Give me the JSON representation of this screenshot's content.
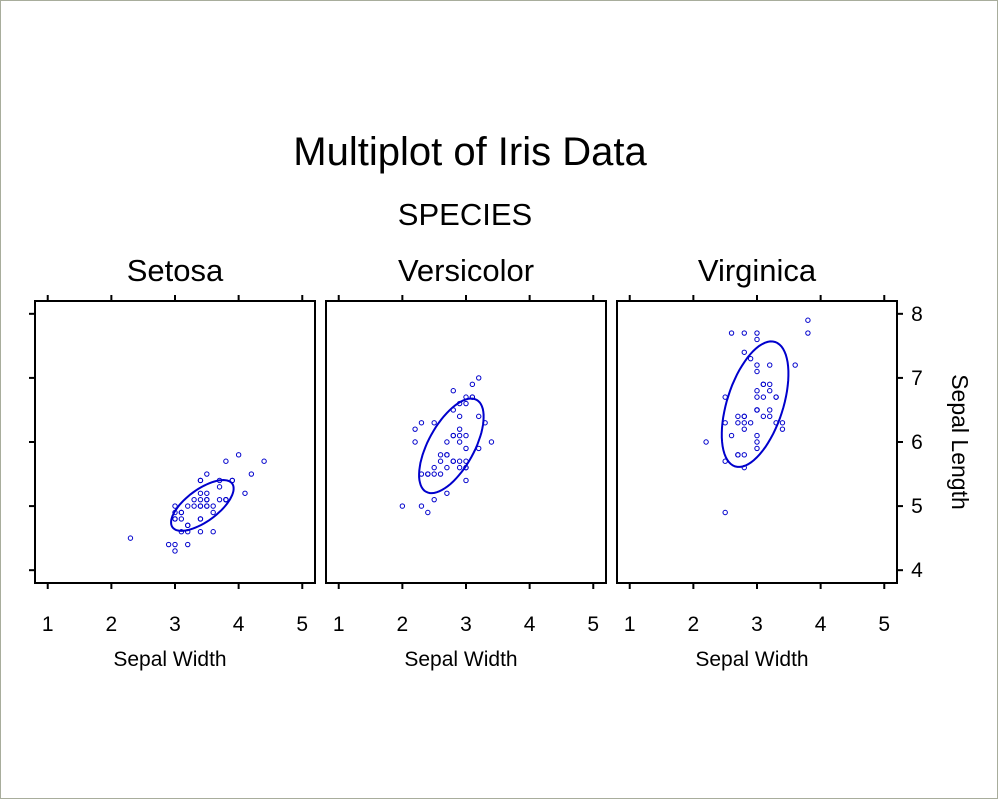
{
  "chart_data": {
    "type": "scatter",
    "title": "Multiplot of Iris Data",
    "subtitle": "SPECIES",
    "xlabel": "Sepal Width",
    "ylabel": "Sepal Length",
    "xlim": [
      0.8,
      5.2
    ],
    "ylim": [
      3.8,
      8.2
    ],
    "x_ticks": [
      1,
      2,
      3,
      4,
      5
    ],
    "y_ticks": [
      4,
      5,
      6,
      7,
      8
    ],
    "y_axis_side": "right",
    "marker_color": "#0000cc",
    "ellipse_color": "#0000cc",
    "panels": [
      {
        "name": "Setosa",
        "points": [
          [
            3.5,
            5.1
          ],
          [
            3.0,
            4.9
          ],
          [
            3.2,
            4.7
          ],
          [
            3.1,
            4.6
          ],
          [
            3.6,
            5.0
          ],
          [
            3.9,
            5.4
          ],
          [
            3.4,
            4.6
          ],
          [
            3.4,
            5.0
          ],
          [
            2.9,
            4.4
          ],
          [
            3.1,
            4.9
          ],
          [
            3.7,
            5.4
          ],
          [
            3.4,
            4.8
          ],
          [
            3.0,
            4.8
          ],
          [
            3.0,
            4.3
          ],
          [
            4.0,
            5.8
          ],
          [
            4.4,
            5.7
          ],
          [
            3.9,
            5.4
          ],
          [
            3.5,
            5.1
          ],
          [
            3.8,
            5.7
          ],
          [
            3.8,
            5.1
          ],
          [
            3.4,
            5.4
          ],
          [
            3.7,
            5.1
          ],
          [
            3.6,
            4.6
          ],
          [
            3.3,
            5.1
          ],
          [
            3.4,
            4.8
          ],
          [
            3.0,
            5.0
          ],
          [
            3.4,
            5.0
          ],
          [
            3.5,
            5.2
          ],
          [
            3.4,
            5.2
          ],
          [
            3.2,
            4.7
          ],
          [
            3.1,
            4.8
          ],
          [
            3.4,
            5.4
          ],
          [
            4.1,
            5.2
          ],
          [
            4.2,
            5.5
          ],
          [
            3.1,
            4.9
          ],
          [
            3.2,
            5.0
          ],
          [
            3.5,
            5.5
          ],
          [
            3.6,
            4.9
          ],
          [
            3.0,
            4.4
          ],
          [
            3.4,
            5.1
          ],
          [
            3.5,
            5.0
          ],
          [
            2.3,
            4.5
          ],
          [
            3.2,
            4.4
          ],
          [
            3.5,
            5.0
          ],
          [
            3.8,
            5.1
          ],
          [
            3.0,
            4.8
          ],
          [
            3.8,
            5.1
          ],
          [
            3.2,
            4.6
          ],
          [
            3.7,
            5.3
          ],
          [
            3.3,
            5.0
          ]
        ],
        "ellipse": {
          "center": [
            3.43,
            5.01
          ],
          "angle_deg": 36,
          "semi_major": 0.58,
          "semi_minor": 0.25
        }
      },
      {
        "name": "Versicolor",
        "points": [
          [
            3.2,
            7.0
          ],
          [
            3.2,
            6.4
          ],
          [
            3.1,
            6.9
          ],
          [
            2.3,
            5.5
          ],
          [
            2.8,
            6.5
          ],
          [
            2.8,
            5.7
          ],
          [
            3.3,
            6.3
          ],
          [
            2.4,
            4.9
          ],
          [
            2.9,
            6.6
          ],
          [
            2.7,
            5.2
          ],
          [
            2.0,
            5.0
          ],
          [
            3.0,
            5.9
          ],
          [
            2.2,
            6.0
          ],
          [
            2.9,
            6.1
          ],
          [
            2.9,
            5.6
          ],
          [
            3.1,
            6.7
          ],
          [
            3.0,
            5.6
          ],
          [
            2.7,
            5.8
          ],
          [
            2.2,
            6.2
          ],
          [
            2.5,
            5.6
          ],
          [
            3.2,
            5.9
          ],
          [
            2.8,
            6.1
          ],
          [
            2.5,
            6.3
          ],
          [
            2.8,
            6.1
          ],
          [
            2.9,
            6.4
          ],
          [
            3.0,
            6.6
          ],
          [
            2.8,
            6.8
          ],
          [
            3.0,
            6.7
          ],
          [
            2.9,
            6.0
          ],
          [
            2.6,
            5.7
          ],
          [
            2.4,
            5.5
          ],
          [
            2.4,
            5.5
          ],
          [
            2.7,
            5.8
          ],
          [
            2.7,
            6.0
          ],
          [
            3.0,
            5.4
          ],
          [
            3.4,
            6.0
          ],
          [
            3.1,
            6.7
          ],
          [
            2.3,
            6.3
          ],
          [
            3.0,
            5.6
          ],
          [
            2.5,
            5.5
          ],
          [
            2.6,
            5.5
          ],
          [
            3.0,
            6.1
          ],
          [
            2.6,
            5.8
          ],
          [
            2.3,
            5.0
          ],
          [
            2.7,
            5.6
          ],
          [
            3.0,
            5.7
          ],
          [
            2.9,
            5.7
          ],
          [
            2.9,
            6.2
          ],
          [
            2.5,
            5.1
          ],
          [
            2.8,
            5.7
          ]
        ],
        "ellipse": {
          "center": [
            2.77,
            5.94
          ],
          "angle_deg": 61,
          "semi_major": 0.82,
          "semi_minor": 0.36
        }
      },
      {
        "name": "Virginica",
        "points": [
          [
            3.3,
            6.3
          ],
          [
            2.7,
            5.8
          ],
          [
            3.0,
            7.1
          ],
          [
            2.9,
            6.3
          ],
          [
            3.0,
            6.5
          ],
          [
            3.0,
            7.6
          ],
          [
            2.5,
            4.9
          ],
          [
            2.9,
            7.3
          ],
          [
            2.5,
            6.7
          ],
          [
            3.6,
            7.2
          ],
          [
            3.2,
            6.5
          ],
          [
            2.7,
            6.4
          ],
          [
            3.0,
            6.8
          ],
          [
            2.5,
            5.7
          ],
          [
            2.8,
            5.8
          ],
          [
            3.2,
            6.4
          ],
          [
            3.0,
            6.5
          ],
          [
            3.8,
            7.7
          ],
          [
            2.6,
            7.7
          ],
          [
            2.2,
            6.0
          ],
          [
            3.2,
            6.9
          ],
          [
            2.8,
            5.6
          ],
          [
            2.8,
            7.7
          ],
          [
            2.7,
            6.3
          ],
          [
            3.3,
            6.7
          ],
          [
            3.2,
            7.2
          ],
          [
            2.8,
            6.2
          ],
          [
            3.0,
            6.1
          ],
          [
            2.8,
            6.4
          ],
          [
            3.0,
            7.2
          ],
          [
            2.8,
            7.4
          ],
          [
            3.8,
            7.9
          ],
          [
            2.8,
            6.4
          ],
          [
            2.8,
            6.3
          ],
          [
            2.6,
            6.1
          ],
          [
            3.0,
            7.7
          ],
          [
            3.4,
            6.3
          ],
          [
            3.1,
            6.4
          ],
          [
            3.0,
            6.0
          ],
          [
            3.1,
            6.9
          ],
          [
            3.1,
            6.7
          ],
          [
            3.1,
            6.9
          ],
          [
            2.7,
            5.8
          ],
          [
            3.2,
            6.8
          ],
          [
            3.3,
            6.7
          ],
          [
            3.0,
            6.7
          ],
          [
            2.5,
            6.3
          ],
          [
            3.0,
            6.5
          ],
          [
            3.4,
            6.2
          ],
          [
            3.0,
            5.9
          ]
        ],
        "ellipse": {
          "center": [
            2.97,
            6.59
          ],
          "angle_deg": 72,
          "semi_major": 1.02,
          "semi_minor": 0.44
        }
      }
    ]
  }
}
